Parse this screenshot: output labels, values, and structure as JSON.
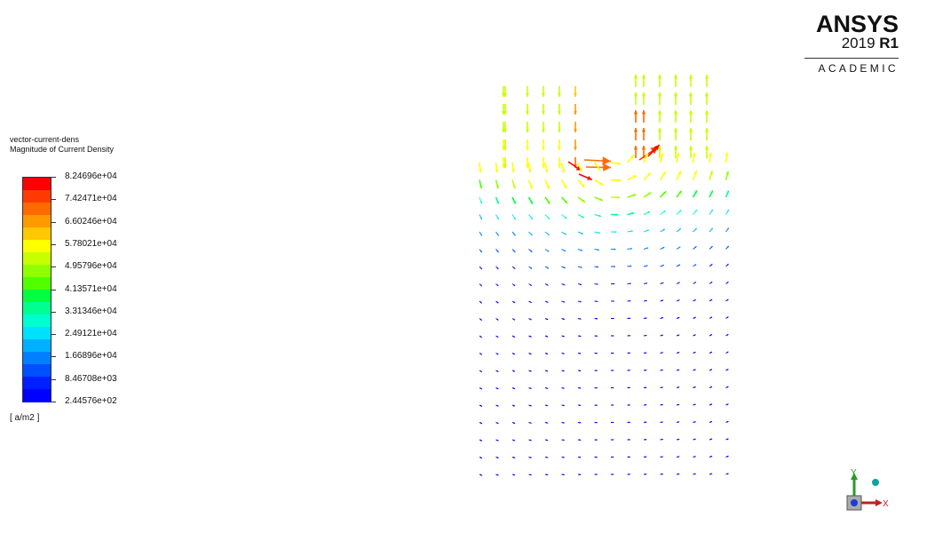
{
  "legend": {
    "title_line1": "vector-current-dens",
    "title_line2": "Magnitude of Current Density",
    "units": "[ a/m2 ]",
    "ticks": [
      "8.24696e+04",
      "7.42471e+04",
      "6.60246e+04",
      "5.78021e+04",
      "4.95796e+04",
      "4.13571e+04",
      "3.31346e+04",
      "2.49121e+04",
      "1.66896e+04",
      "8.46708e+03",
      "2.44576e+02"
    ],
    "band_colors": [
      "#ff0000",
      "#ff3a00",
      "#ff6a00",
      "#ff9900",
      "#ffc800",
      "#ffff00",
      "#c8ff00",
      "#90ff00",
      "#50ff00",
      "#00ff40",
      "#00ff90",
      "#00ffd0",
      "#00e0ff",
      "#00b0ff",
      "#0080ff",
      "#0050ff",
      "#0020ff",
      "#0000ff"
    ]
  },
  "logo": {
    "name": "ANSYS",
    "version": "2019",
    "release": "R1",
    "edition": "ACADEMIC"
  },
  "triad": {
    "y_label": "Y",
    "x_label": "X"
  }
}
